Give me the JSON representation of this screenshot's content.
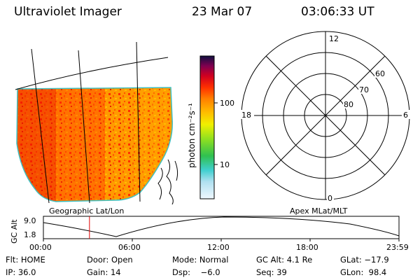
{
  "header": {
    "instrument": "Ultraviolet Imager",
    "date": "23 Mar 07",
    "time": "03:06:33 UT"
  },
  "image_panel": {
    "projection_label": "Geographic Lat/Lon"
  },
  "colorbar": {
    "unit_label": "photon cm⁻²s⁻¹",
    "ticks": [
      "100",
      "10"
    ],
    "colors": [
      "#e0f0f8",
      "#40d0d0",
      "#30c040",
      "#90e020",
      "#f0f000",
      "#ffa000",
      "#ff5a00",
      "#e00000",
      "#a00040",
      "#101040"
    ]
  },
  "polar_plot": {
    "label": "Apex MLat/MLT",
    "mlt_labels": {
      "top": "12",
      "right": "6",
      "left": "18",
      "bottom": "0"
    },
    "lat_labels": [
      "60",
      "70",
      "80"
    ]
  },
  "altitude_plot": {
    "ylabel": "GC Alt",
    "ytick_top": "9.0",
    "ytick_bottom": "1.8",
    "xticks": [
      "00:00",
      "06:00",
      "12:00",
      "18:00",
      "23:59"
    ],
    "current_time_marker_hours": 3.11,
    "marker_color": "#e00000"
  },
  "status": {
    "flt": "Flt: HOME",
    "door": "Door: Open",
    "mode": "Mode: Normal",
    "gc_alt": "GC Alt: 4.1 Re",
    "glat": "GLat: −17.9",
    "ip": "IP: 36.0",
    "gain": "Gain: 14",
    "dsp": "Dsp:    −6.0",
    "seq": "Seq: 39",
    "glon": "GLon:  98.4"
  }
}
